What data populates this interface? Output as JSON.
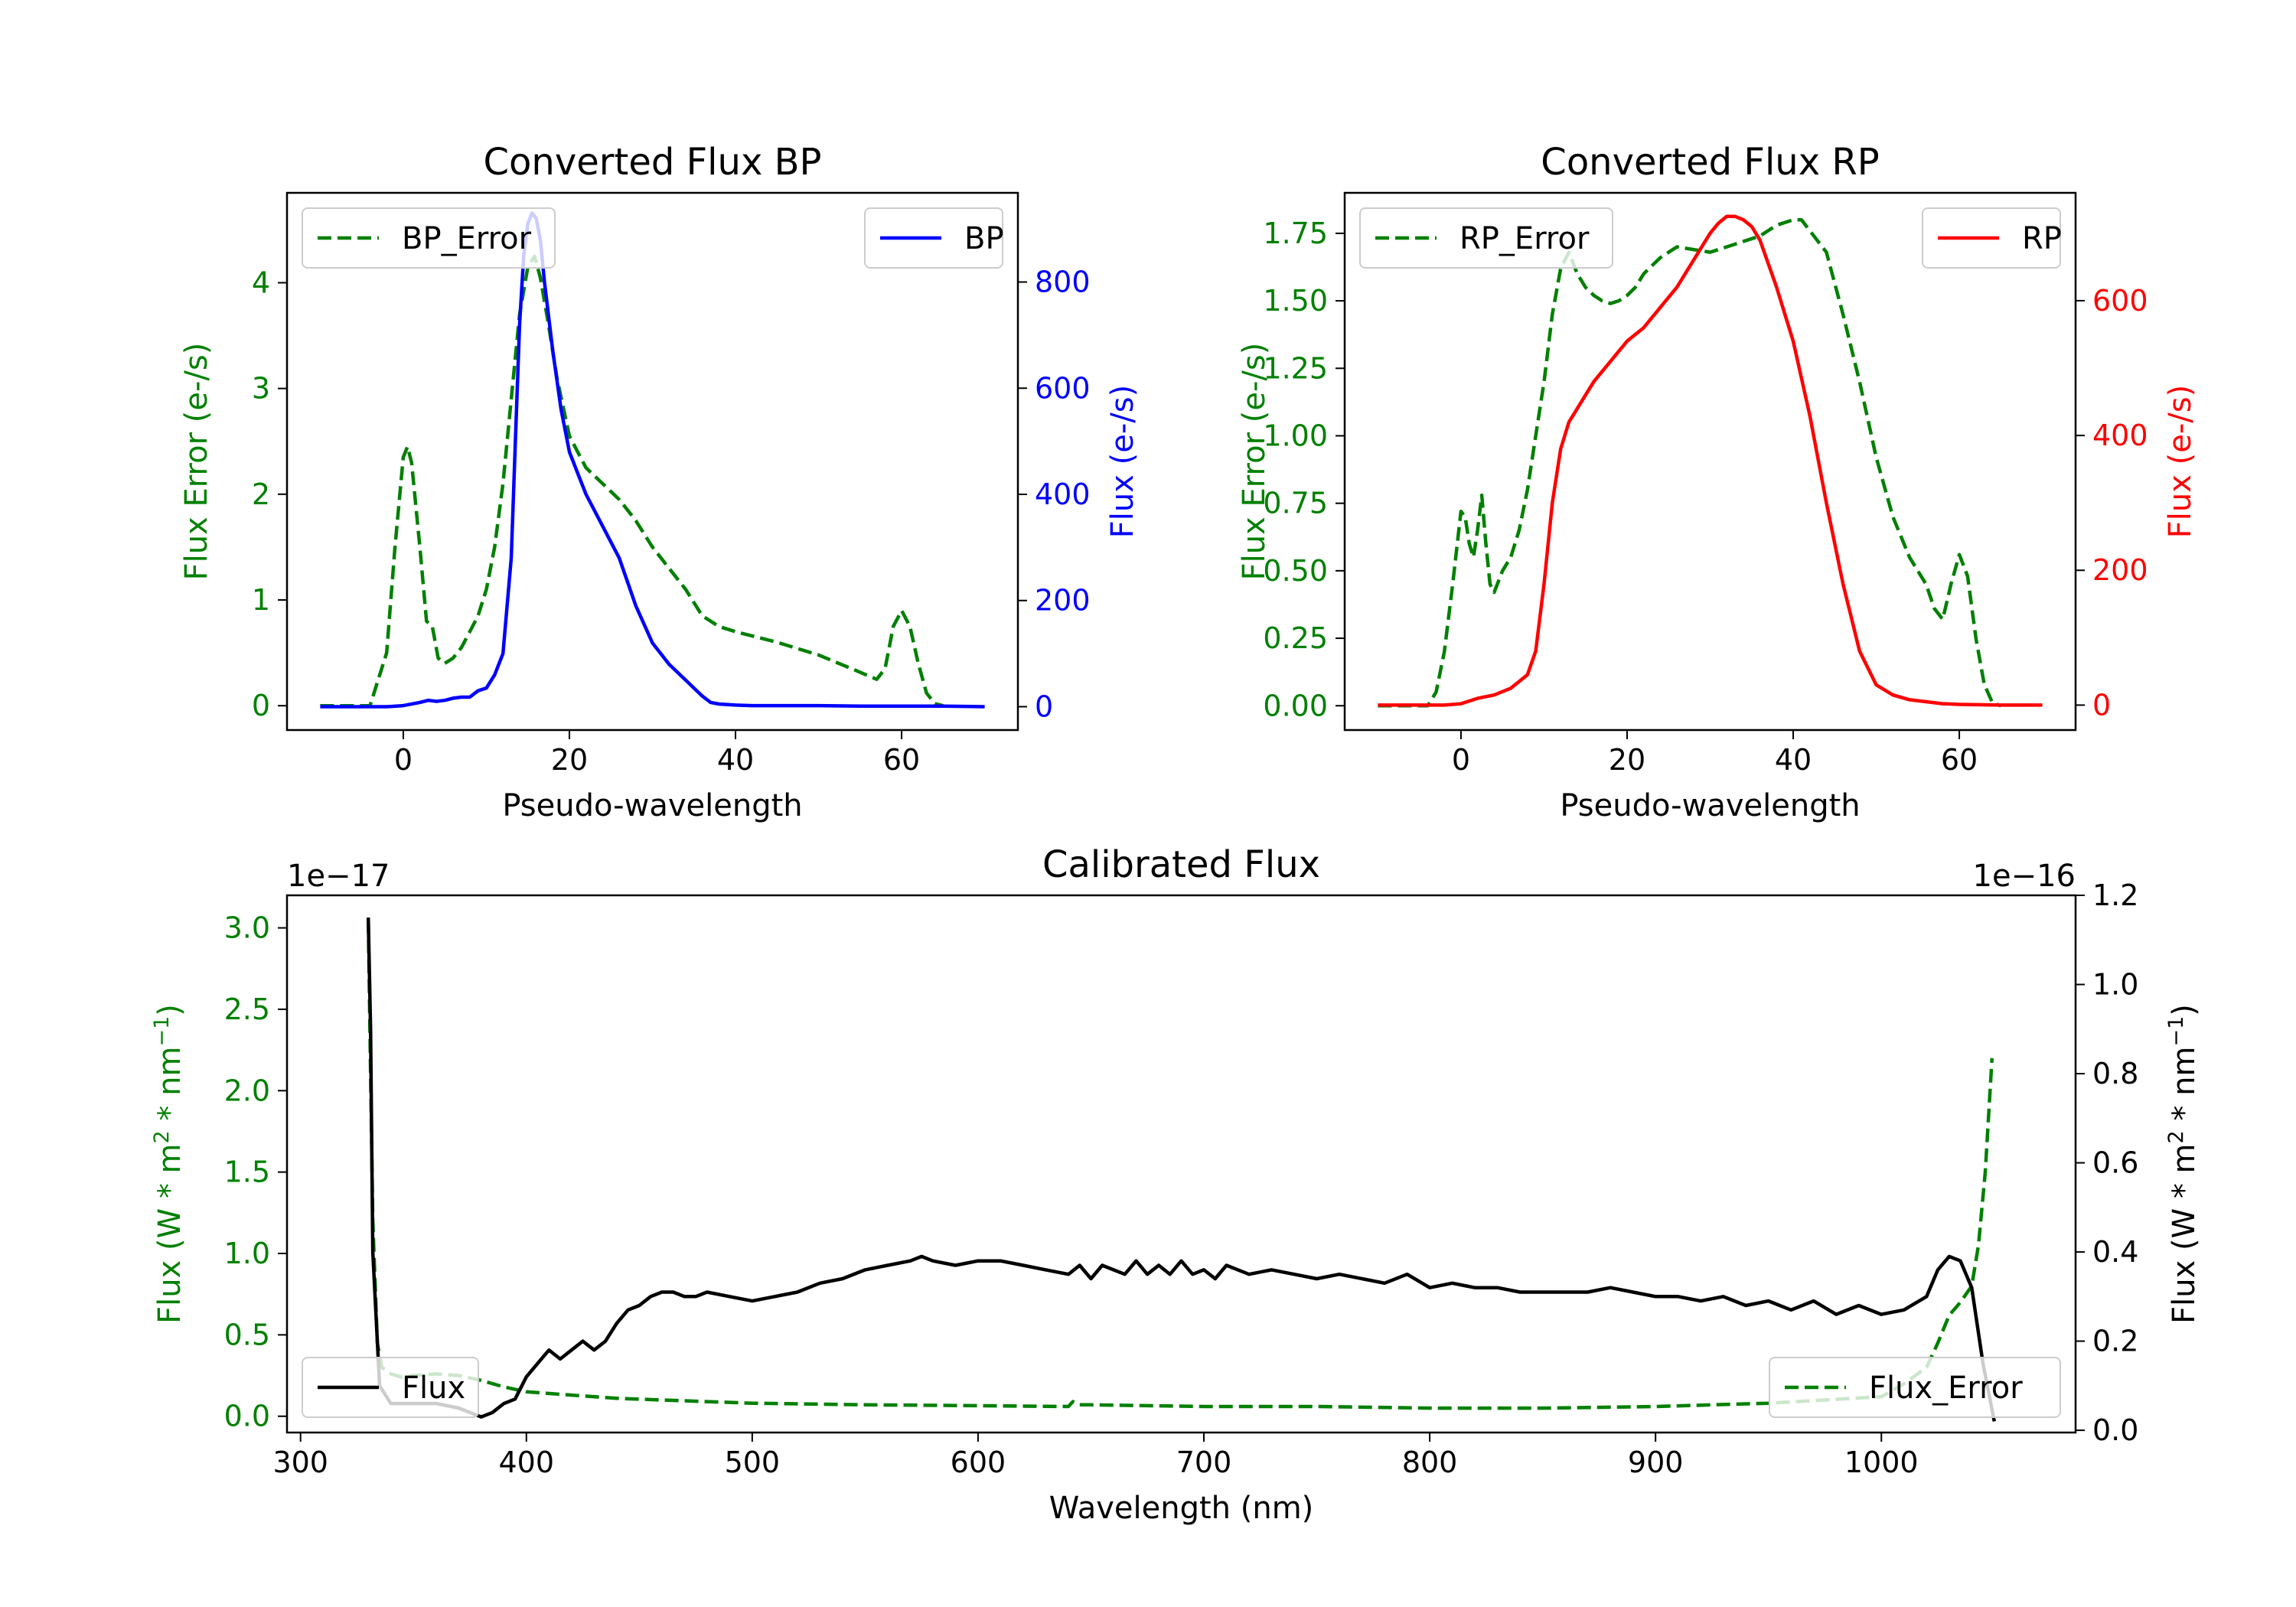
{
  "chart_data": [
    {
      "type": "line",
      "title": "Converted Flux BP",
      "xlabel": "Pseudo-wavelength",
      "xlim": [
        -14,
        74
      ],
      "xticks": [
        0,
        20,
        40,
        60
      ],
      "left_axis": {
        "label": "Flux Error (e-/s)",
        "color": "#008000",
        "ylim": [
          -0.23,
          4.85
        ],
        "ticks": [
          0,
          1,
          2,
          3,
          4
        ]
      },
      "right_axis": {
        "label": "Flux (e-/s)",
        "color": "#0000ff",
        "ylim": [
          -44,
          968
        ],
        "ticks": [
          0,
          200,
          400,
          600,
          800
        ]
      },
      "series": [
        {
          "name": "BP_Error",
          "axis": "left",
          "color": "#008000",
          "dash": true,
          "legend": "upper left",
          "x": [
            -10,
            -4,
            -2,
            -1,
            0,
            0.5,
            1,
            2,
            2.8,
            3.5,
            4.2,
            5,
            6,
            7,
            8,
            9,
            10,
            11,
            12,
            13,
            14,
            15,
            15.8,
            16.5,
            17.5,
            18.5,
            20,
            22,
            24,
            26,
            28,
            30,
            32,
            34,
            36,
            38,
            40,
            45,
            50,
            54,
            57,
            58,
            59,
            60,
            61,
            62,
            63,
            64,
            65
          ],
          "y": [
            0,
            0,
            0.5,
            1.5,
            2.35,
            2.45,
            2.3,
            1.5,
            0.8,
            0.75,
            0.45,
            0.4,
            0.45,
            0.55,
            0.7,
            0.85,
            1.1,
            1.5,
            2.1,
            2.9,
            3.7,
            4.15,
            4.25,
            4.05,
            3.6,
            3.1,
            2.55,
            2.25,
            2.1,
            1.95,
            1.75,
            1.5,
            1.3,
            1.1,
            0.85,
            0.75,
            0.7,
            0.6,
            0.48,
            0.35,
            0.25,
            0.35,
            0.75,
            0.9,
            0.75,
            0.4,
            0.12,
            0.02,
            0
          ]
        },
        {
          "name": "BP",
          "axis": "right",
          "color": "#0000ff",
          "dash": false,
          "legend": "upper right",
          "x": [
            -10,
            -2,
            0,
            2,
            3,
            4,
            5,
            6,
            7,
            8,
            9,
            10,
            11,
            12,
            13,
            13.5,
            14,
            14.5,
            15,
            15.5,
            16,
            16.5,
            17,
            18,
            19,
            20,
            21,
            22,
            24,
            26,
            28,
            30,
            32,
            34,
            36,
            37,
            38,
            40,
            42,
            45,
            50,
            55,
            60,
            65,
            70
          ],
          "y": [
            0,
            0,
            2,
            8,
            12,
            10,
            12,
            16,
            18,
            18,
            30,
            35,
            60,
            100,
            280,
            500,
            720,
            850,
            910,
            930,
            920,
            880,
            800,
            670,
            560,
            480,
            440,
            400,
            340,
            280,
            190,
            120,
            80,
            50,
            20,
            8,
            5,
            3,
            2,
            2,
            2,
            1,
            1,
            1,
            0
          ]
        }
      ]
    },
    {
      "type": "line",
      "title": "Converted Flux RP",
      "xlabel": "Pseudo-wavelength",
      "xlim": [
        -14,
        74
      ],
      "xticks": [
        0,
        20,
        40,
        60
      ],
      "left_axis": {
        "label": "Flux Error (e-/s)",
        "color": "#008000",
        "ylim": [
          -0.09,
          1.9
        ],
        "ticks": [
          0.0,
          0.25,
          0.5,
          0.75,
          1.0,
          1.25,
          1.5,
          1.75
        ],
        "tick_labels": [
          "0.00",
          "0.25",
          "0.50",
          "0.75",
          "1.00",
          "1.25",
          "1.50",
          "1.75"
        ]
      },
      "right_axis": {
        "label": "Flux (e-/s)",
        "color": "#ff0000",
        "ylim": [
          -37,
          760
        ],
        "ticks": [
          0,
          200,
          400,
          600
        ]
      },
      "series": [
        {
          "name": "RP_Error",
          "axis": "left",
          "color": "#008000",
          "dash": true,
          "legend": "upper left",
          "x": [
            -10,
            -4,
            -3,
            -2,
            -1,
            0,
            0.5,
            1,
            1.5,
            2,
            2.5,
            3,
            3.5,
            4,
            5,
            6,
            7,
            8,
            9,
            10,
            11,
            12,
            13,
            14,
            15,
            16,
            17,
            18,
            19,
            20,
            21,
            22,
            23,
            24,
            26,
            28,
            30,
            32,
            34,
            36,
            38,
            40,
            41,
            42,
            44,
            46,
            48,
            50,
            52,
            54,
            55,
            56,
            57,
            58,
            59,
            60,
            61,
            62,
            63,
            64,
            65
          ],
          "y": [
            0,
            0,
            0.05,
            0.2,
            0.45,
            0.72,
            0.7,
            0.6,
            0.55,
            0.65,
            0.78,
            0.6,
            0.45,
            0.42,
            0.5,
            0.55,
            0.65,
            0.8,
            1.0,
            1.2,
            1.45,
            1.62,
            1.68,
            1.6,
            1.55,
            1.52,
            1.5,
            1.49,
            1.5,
            1.52,
            1.55,
            1.6,
            1.63,
            1.66,
            1.7,
            1.69,
            1.68,
            1.7,
            1.72,
            1.74,
            1.78,
            1.8,
            1.8,
            1.76,
            1.68,
            1.45,
            1.2,
            0.92,
            0.7,
            0.55,
            0.5,
            0.45,
            0.36,
            0.32,
            0.45,
            0.56,
            0.48,
            0.25,
            0.08,
            0.01,
            0
          ]
        },
        {
          "name": "RP",
          "axis": "right",
          "color": "#ff0000",
          "dash": false,
          "legend": "upper right",
          "x": [
            -10,
            -2,
            0,
            2,
            4,
            6,
            8,
            9,
            10,
            11,
            12,
            13,
            14,
            15,
            16,
            18,
            20,
            22,
            24,
            26,
            28,
            30,
            31,
            32,
            33,
            34,
            35,
            36,
            38,
            40,
            42,
            44,
            46,
            48,
            50,
            52,
            54,
            56,
            58,
            60,
            65,
            70
          ],
          "y": [
            0,
            0,
            2,
            10,
            15,
            25,
            45,
            80,
            180,
            300,
            380,
            420,
            440,
            460,
            480,
            510,
            540,
            560,
            590,
            620,
            660,
            700,
            715,
            725,
            725,
            720,
            710,
            690,
            620,
            540,
            430,
            300,
            180,
            80,
            30,
            15,
            8,
            5,
            2,
            1,
            0,
            0
          ]
        }
      ]
    },
    {
      "type": "line",
      "title": "Calibrated Flux",
      "xlabel": "Wavelength (nm)",
      "xlim": [
        294,
        1086
      ],
      "xticks": [
        300,
        400,
        500,
        600,
        700,
        800,
        900,
        1000
      ],
      "left_axis": {
        "label": "Flux (W * m^2 * nm^-1)",
        "color": "#008000",
        "exponent_label": "1e−17",
        "ylim": [
          -0.1,
          3.2
        ],
        "ticks": [
          0.0,
          0.5,
          1.0,
          1.5,
          2.0,
          2.5,
          3.0
        ],
        "tick_labels": [
          "0.0",
          "0.5",
          "1.0",
          "1.5",
          "2.0",
          "2.5",
          "3.0"
        ]
      },
      "right_axis": {
        "label": "Flux (W * m^2 * nm^-1)",
        "color": "#000000",
        "exponent_label": "1e−16",
        "ylim": [
          -0.005,
          1.2
        ],
        "ticks": [
          0.0,
          0.2,
          0.4,
          0.6,
          0.8,
          1.0,
          1.2
        ],
        "tick_labels": [
          "0.0",
          "0.2",
          "0.4",
          "0.6",
          "0.8",
          "1.0",
          "1.2"
        ]
      },
      "series": [
        {
          "name": "Flux_Error",
          "axis": "left",
          "color": "#008000",
          "dash": true,
          "legend": "lower right",
          "x": [
            330,
            332,
            334,
            336,
            340,
            345,
            350,
            360,
            370,
            380,
            390,
            400,
            420,
            440,
            460,
            480,
            500,
            550,
            600,
            640,
            642,
            645,
            650,
            700,
            750,
            800,
            850,
            900,
            950,
            1000,
            1010,
            1020,
            1025,
            1030,
            1035,
            1040,
            1043,
            1046,
            1049
          ],
          "y": [
            3.05,
            1.2,
            0.45,
            0.3,
            0.26,
            0.24,
            0.25,
            0.26,
            0.25,
            0.22,
            0.18,
            0.15,
            0.13,
            0.11,
            0.1,
            0.09,
            0.08,
            0.07,
            0.065,
            0.06,
            0.09,
            0.07,
            0.07,
            0.06,
            0.06,
            0.05,
            0.05,
            0.06,
            0.08,
            0.12,
            0.2,
            0.3,
            0.45,
            0.62,
            0.7,
            0.8,
            1.05,
            1.5,
            2.2
          ]
        },
        {
          "name": "Flux",
          "axis": "right",
          "color": "#000000",
          "dash": false,
          "legend": "lower left",
          "x": [
            330,
            331,
            332,
            335,
            340,
            350,
            360,
            370,
            380,
            385,
            390,
            395,
            400,
            405,
            410,
            415,
            420,
            425,
            430,
            435,
            440,
            445,
            450,
            455,
            460,
            465,
            470,
            475,
            480,
            490,
            500,
            510,
            520,
            530,
            540,
            550,
            560,
            570,
            575,
            580,
            590,
            600,
            610,
            620,
            630,
            640,
            645,
            650,
            655,
            660,
            665,
            670,
            675,
            680,
            685,
            690,
            695,
            700,
            705,
            710,
            720,
            730,
            740,
            750,
            760,
            770,
            780,
            790,
            800,
            810,
            820,
            830,
            840,
            850,
            860,
            870,
            880,
            890,
            900,
            910,
            920,
            930,
            940,
            950,
            960,
            970,
            980,
            990,
            1000,
            1010,
            1020,
            1025,
            1030,
            1035,
            1040,
            1045,
            1050
          ],
          "y": [
            1.15,
            0.9,
            0.4,
            0.1,
            0.06,
            0.06,
            0.06,
            0.05,
            0.03,
            0.04,
            0.06,
            0.07,
            0.12,
            0.15,
            0.18,
            0.16,
            0.18,
            0.2,
            0.18,
            0.2,
            0.24,
            0.27,
            0.28,
            0.3,
            0.31,
            0.31,
            0.3,
            0.3,
            0.31,
            0.3,
            0.29,
            0.3,
            0.31,
            0.33,
            0.34,
            0.36,
            0.37,
            0.38,
            0.39,
            0.38,
            0.37,
            0.38,
            0.38,
            0.37,
            0.36,
            0.35,
            0.37,
            0.34,
            0.37,
            0.36,
            0.35,
            0.38,
            0.35,
            0.37,
            0.35,
            0.38,
            0.35,
            0.36,
            0.34,
            0.37,
            0.35,
            0.36,
            0.35,
            0.34,
            0.35,
            0.34,
            0.33,
            0.35,
            0.32,
            0.33,
            0.32,
            0.32,
            0.31,
            0.31,
            0.31,
            0.31,
            0.32,
            0.31,
            0.3,
            0.3,
            0.29,
            0.3,
            0.28,
            0.29,
            0.27,
            0.29,
            0.26,
            0.28,
            0.26,
            0.27,
            0.3,
            0.36,
            0.39,
            0.38,
            0.32,
            0.15,
            0.02
          ]
        }
      ]
    }
  ]
}
